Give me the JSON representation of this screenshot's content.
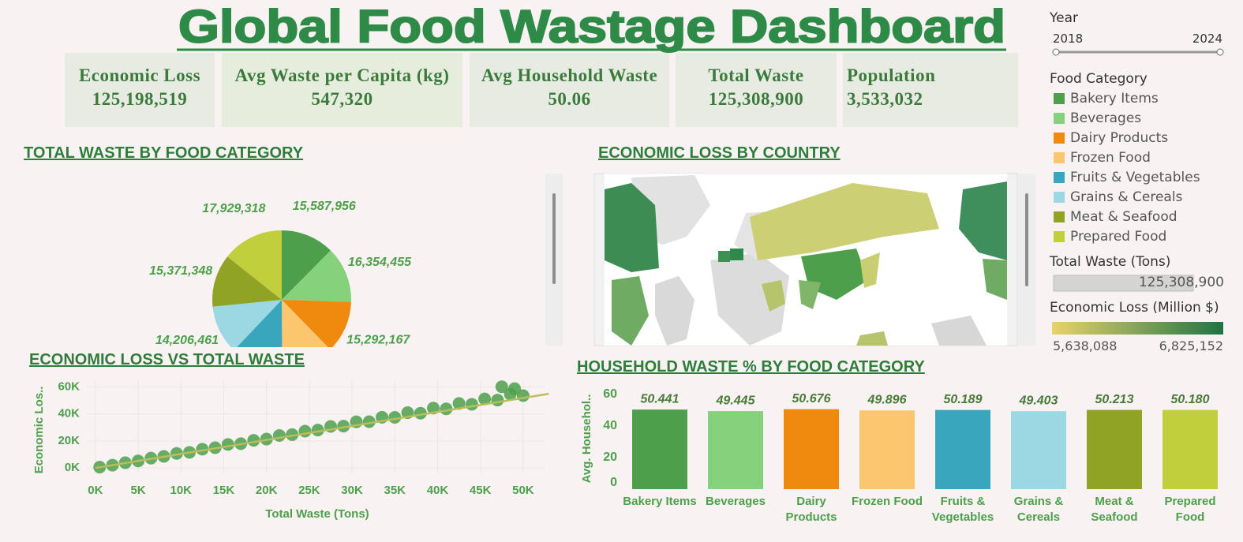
{
  "title": "Global Food Wastage Dashboard",
  "kpis": [
    {
      "label": "Economic Loss",
      "value": "125,198,519"
    },
    {
      "label": "Avg Waste per Capita (kg)",
      "value": "547,320"
    },
    {
      "label": "Avg Household Waste",
      "value": "50.06"
    },
    {
      "label": "Total Waste",
      "value": "125,308,900"
    },
    {
      "label": "Population",
      "value": "3,533,032"
    }
  ],
  "filters": {
    "year": {
      "title": "Year",
      "range": [
        2018,
        2024
      ]
    },
    "total_waste": {
      "title": "Total Waste (Tons)",
      "value": {
        "value": 125308900,
        "label": "125,308,900"
      }
    }
  },
  "legend_title": "Food Category",
  "chart_data": [
    {
      "type": "pie",
      "title": "TOTAL WASTE BY FOOD CATEGORY",
      "categories": [
        "Bakery Items",
        "Beverages",
        "Dairy Products",
        "Frozen Food",
        "Fruits & Vegetables",
        "Grains & Cereals",
        "Meat & Seafood",
        "Prepared Food"
      ],
      "values": [
        15587956,
        16354455,
        15292167,
        15283598,
        15283597,
        14206461,
        15371348,
        17929318
      ],
      "value_labels": [
        "15,587,956",
        "16,354,455",
        "15,292,167",
        null,
        null,
        "14,206,461",
        "15,371,348",
        "17,929,318"
      ],
      "colors": [
        "#4e9f4b",
        "#86d17c",
        "#ef8a0f",
        "#fbc66e",
        "#3aa6bd",
        "#9cd8e4",
        "#90a324",
        "#c1cf3d"
      ]
    },
    {
      "type": "map",
      "title": "ECONOMIC LOSS BY COUNTRY",
      "legend_title": "Economic Loss (Million $)",
      "range": [
        {
          "value": 5638088,
          "label": "5,638,088"
        },
        {
          "value": 6825152,
          "label": "6,825,152"
        }
      ],
      "colors": [
        "#e9d26c",
        "#1e7443"
      ]
    },
    {
      "type": "scatter",
      "title": "ECONOMIC LOSS VS TOTAL WASTE",
      "x_label": "Total Waste (Tons)",
      "y_label": "Economic Los..",
      "color": "#4e9f4b",
      "x": [
        500,
        2000,
        3500,
        5000,
        6500,
        8000,
        9500,
        11000,
        12500,
        14000,
        15500,
        17000,
        18500,
        20000,
        21500,
        23000,
        24500,
        26000,
        27500,
        29000,
        30500,
        32000,
        33500,
        35000,
        36500,
        38000,
        39500,
        41000,
        42500,
        44000,
        45500,
        47000,
        48500,
        50000,
        49000,
        47500
      ],
      "y": [
        600,
        2100,
        3900,
        5200,
        7300,
        8600,
        10800,
        11600,
        13900,
        15000,
        17400,
        18000,
        20500,
        21400,
        24100,
        24700,
        27300,
        28100,
        30800,
        31000,
        34200,
        34300,
        37600,
        37500,
        41000,
        40600,
        44400,
        43800,
        47800,
        47200,
        51200,
        50300,
        54700,
        53600,
        58800,
        60200
      ],
      "trend": {
        "x": [
          0,
          53000
        ],
        "y": [
          0,
          55000
        ],
        "color": "#b9bd5c"
      },
      "xlim": [
        -1000,
        52500
      ],
      "ylim": [
        -4000,
        65000
      ],
      "xticks": [
        {
          "value": 0,
          "label": "0K"
        },
        {
          "value": 5000,
          "label": "5K"
        },
        {
          "value": 10000,
          "label": "10K"
        },
        {
          "value": 15000,
          "label": "15K"
        },
        {
          "value": 20000,
          "label": "20K"
        },
        {
          "value": 25000,
          "label": "25K"
        },
        {
          "value": 30000,
          "label": "30K"
        },
        {
          "value": 35000,
          "label": "35K"
        },
        {
          "value": 40000,
          "label": "40K"
        },
        {
          "value": 45000,
          "label": "45K"
        },
        {
          "value": 50000,
          "label": "50K"
        }
      ],
      "yticks": [
        {
          "value": 0,
          "label": "0K"
        },
        {
          "value": 20000,
          "label": "20K"
        },
        {
          "value": 40000,
          "label": "40K"
        },
        {
          "value": 60000,
          "label": "60K"
        }
      ],
      "grid": true
    },
    {
      "type": "bar",
      "title": "HOUSEHOLD WASTE % BY FOOD CATEGORY",
      "y_label": "Avg. Househol..",
      "categories": [
        "Bakery Items",
        "Beverages",
        "Dairy Products",
        "Frozen Food",
        "Fruits & Vegetables",
        "Grains & Cereals",
        "Meat & Seafood",
        "Prepared Food"
      ],
      "values": [
        50.441,
        49.445,
        50.676,
        49.896,
        50.189,
        49.403,
        50.213,
        50.18
      ],
      "value_labels": [
        "50.441",
        "49.445",
        "50.676",
        "49.896",
        "50.189",
        "49.403",
        "50.213",
        "50.180"
      ],
      "colors": [
        "#4e9f4b",
        "#86d17c",
        "#ef8a0f",
        "#fbc66e",
        "#3aa6bd",
        "#9cd8e4",
        "#90a324",
        "#c1cf3d"
      ],
      "ylim": [
        0,
        60
      ],
      "yticks": [
        0,
        20,
        40,
        60
      ]
    }
  ]
}
